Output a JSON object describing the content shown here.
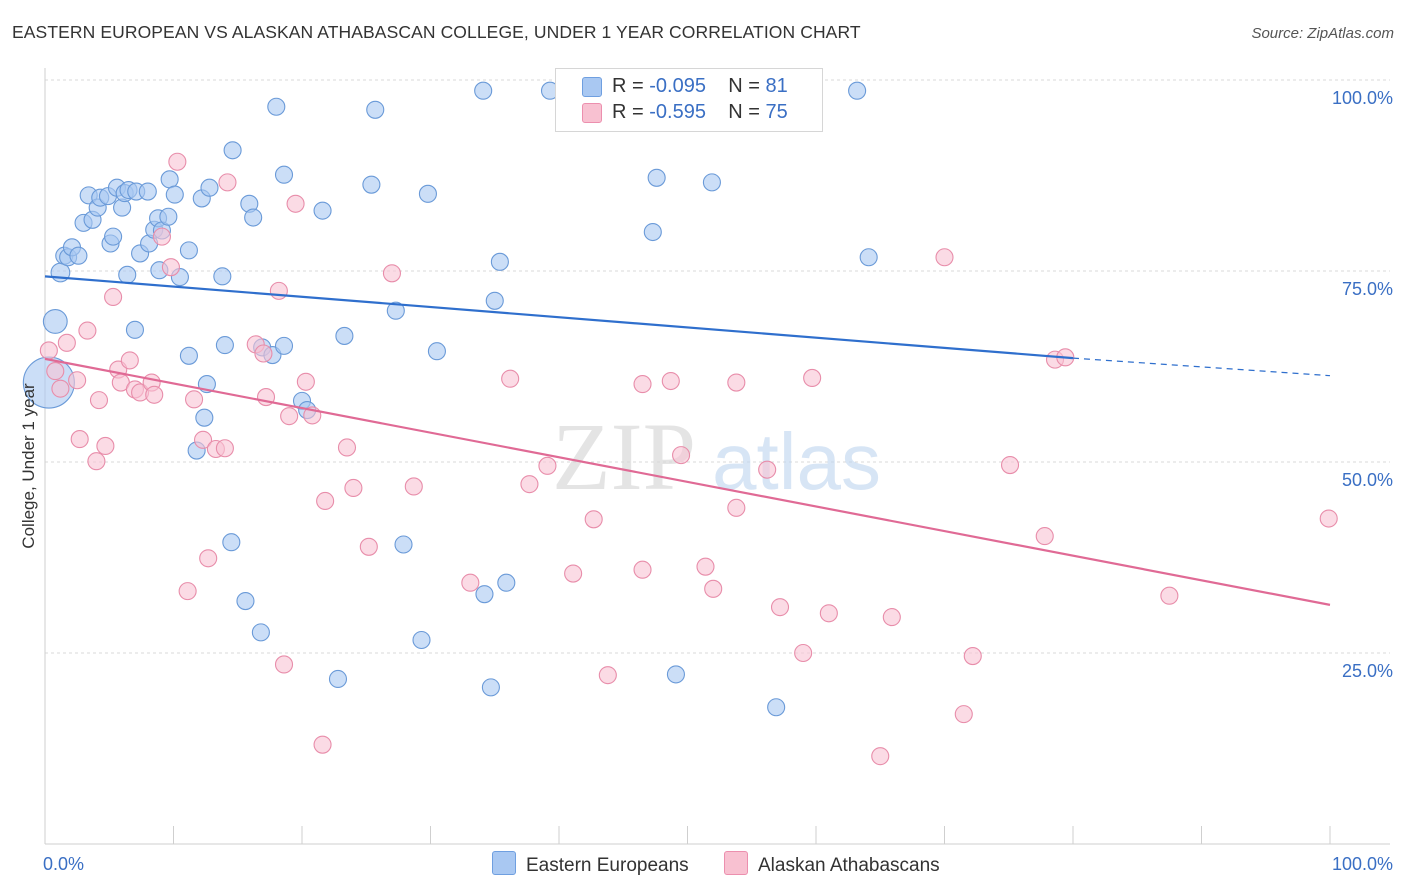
{
  "title": "EASTERN EUROPEAN VS ALASKAN ATHABASCAN COLLEGE, UNDER 1 YEAR CORRELATION CHART",
  "source": "Source: ZipAtlas.com",
  "watermark": {
    "zip": "ZIP",
    "atlas": "atlas"
  },
  "legend_stats": [
    {
      "r_label": "R =",
      "r_value": "-0.095",
      "n_label": "N =",
      "n_value": "81",
      "color": "#a9c8f2",
      "border": "#6f9fe0"
    },
    {
      "r_label": "R =",
      "r_value": "-0.595",
      "n_label": "N =",
      "n_value": "75",
      "color": "#f8c1d1",
      "border": "#ec8fae"
    }
  ],
  "bottom_legend": [
    "Eastern Europeans",
    "Alaskan Athabascans"
  ],
  "colors": {
    "blue_fill": "#a9c8f2",
    "blue_stroke": "#6a9ad8",
    "blue_line": "#2f6fcd",
    "pink_fill": "#f8c3d3",
    "pink_stroke": "#e88daa",
    "pink_line": "#e06a95",
    "tick_label": "#3a6fc4",
    "grid": "#d9d9d9"
  },
  "chart_data": {
    "type": "scatter",
    "title": "EASTERN EUROPEAN VS ALASKAN ATHABASCAN COLLEGE, UNDER 1 YEAR CORRELATION CHART",
    "xlabel": "",
    "ylabel": "College, Under 1 year",
    "xlim": [
      0,
      100
    ],
    "ylim": [
      0,
      100
    ],
    "x_tick_labels": [
      "0.0%",
      "100.0%"
    ],
    "y_tick_labels": [
      "100.0%",
      "75.0%",
      "50.0%",
      "25.0%"
    ],
    "y_ticks": [
      100,
      75,
      50,
      25
    ],
    "grid": true,
    "legend_position": "top-center",
    "series": [
      {
        "name": "Eastern Europeans",
        "trend": {
          "x": [
            0,
            80,
            100
          ],
          "y": [
            74.3,
            63.6,
            61.3
          ],
          "dashed_from": 80
        },
        "points": [
          [
            0.3,
            60.4,
            30
          ],
          [
            0.8,
            68.4,
            14
          ],
          [
            1.2,
            74.8,
            11
          ],
          [
            1.5,
            77.0,
            10
          ],
          [
            1.8,
            76.8,
            10
          ],
          [
            2.1,
            78.1,
            10
          ],
          [
            2.6,
            77.0,
            10
          ],
          [
            3.0,
            81.3,
            10
          ],
          [
            3.4,
            84.9,
            10
          ],
          [
            3.7,
            81.7,
            10
          ],
          [
            4.1,
            83.3,
            10
          ],
          [
            4.3,
            84.6,
            10
          ],
          [
            4.9,
            84.8,
            10
          ],
          [
            5.1,
            78.6,
            10
          ],
          [
            5.3,
            79.5,
            10
          ],
          [
            5.6,
            85.9,
            10
          ],
          [
            6.0,
            83.3,
            10
          ],
          [
            6.2,
            85.2,
            10
          ],
          [
            6.5,
            85.6,
            10
          ],
          [
            6.4,
            74.5,
            10
          ],
          [
            7.0,
            67.3,
            10
          ],
          [
            7.1,
            85.4,
            10
          ],
          [
            7.4,
            77.3,
            10
          ],
          [
            8.0,
            85.4,
            10
          ],
          [
            8.1,
            78.6,
            10
          ],
          [
            8.5,
            80.4,
            10
          ],
          [
            8.8,
            81.9,
            10
          ],
          [
            8.9,
            75.1,
            10
          ],
          [
            9.1,
            80.3,
            10
          ],
          [
            9.6,
            82.1,
            10
          ],
          [
            9.7,
            87.0,
            10
          ],
          [
            10.1,
            85.0,
            10
          ],
          [
            10.5,
            74.2,
            10
          ],
          [
            11.2,
            63.9,
            10
          ],
          [
            11.2,
            77.7,
            10
          ],
          [
            11.8,
            51.5,
            10
          ],
          [
            12.2,
            84.5,
            10
          ],
          [
            12.4,
            55.8,
            10
          ],
          [
            12.6,
            60.2,
            10
          ],
          [
            12.8,
            85.9,
            10
          ],
          [
            13.8,
            74.3,
            10
          ],
          [
            14.0,
            65.3,
            10
          ],
          [
            14.6,
            90.8,
            10
          ],
          [
            14.5,
            39.5,
            10
          ],
          [
            15.9,
            83.8,
            10
          ],
          [
            15.6,
            31.8,
            10
          ],
          [
            16.2,
            82.0,
            10
          ],
          [
            16.8,
            27.7,
            10
          ],
          [
            16.9,
            65.0,
            10
          ],
          [
            17.7,
            64.0,
            10
          ],
          [
            18.0,
            96.5,
            10
          ],
          [
            18.6,
            65.2,
            10
          ],
          [
            18.6,
            87.6,
            10
          ],
          [
            20.0,
            58.0,
            10
          ],
          [
            20.4,
            56.8,
            10
          ],
          [
            21.6,
            82.9,
            10
          ],
          [
            22.8,
            21.6,
            10
          ],
          [
            23.3,
            66.5,
            10
          ],
          [
            25.4,
            86.3,
            10
          ],
          [
            25.7,
            96.1,
            10
          ],
          [
            27.3,
            69.8,
            10
          ],
          [
            27.9,
            39.2,
            10
          ],
          [
            29.3,
            26.7,
            10
          ],
          [
            29.8,
            85.1,
            10
          ],
          [
            30.5,
            64.5,
            10
          ],
          [
            34.1,
            98.6,
            10
          ],
          [
            34.2,
            32.7,
            10
          ],
          [
            34.7,
            20.5,
            10
          ],
          [
            35.0,
            71.1,
            10
          ],
          [
            35.4,
            76.2,
            10
          ],
          [
            35.9,
            34.2,
            10
          ],
          [
            39.3,
            98.6,
            10
          ],
          [
            44.8,
            98.9,
            10
          ],
          [
            45.3,
            98.1,
            10
          ],
          [
            47.6,
            87.2,
            10
          ],
          [
            47.3,
            80.1,
            10
          ],
          [
            49.1,
            22.2,
            10
          ],
          [
            51.9,
            86.6,
            10
          ],
          [
            56.9,
            17.9,
            10
          ],
          [
            63.2,
            98.6,
            10
          ],
          [
            64.1,
            76.8,
            10
          ]
        ]
      },
      {
        "name": "Alaskan Athabascans",
        "trend": {
          "x": [
            0,
            100
          ],
          "y": [
            63.5,
            31.3
          ],
          "dashed_from": null
        },
        "points": [
          [
            0.3,
            64.6,
            10
          ],
          [
            0.8,
            61.9,
            10
          ],
          [
            1.2,
            59.6,
            10
          ],
          [
            1.7,
            65.6,
            10
          ],
          [
            2.5,
            60.7,
            10
          ],
          [
            2.7,
            53.0,
            10
          ],
          [
            3.3,
            67.2,
            10
          ],
          [
            4.0,
            50.1,
            10
          ],
          [
            4.2,
            58.1,
            10
          ],
          [
            4.7,
            52.1,
            10
          ],
          [
            5.3,
            71.6,
            10
          ],
          [
            5.7,
            62.1,
            10
          ],
          [
            5.9,
            60.4,
            10
          ],
          [
            6.6,
            63.3,
            10
          ],
          [
            7.0,
            59.5,
            10
          ],
          [
            7.4,
            59.1,
            10
          ],
          [
            8.3,
            60.4,
            10
          ],
          [
            8.5,
            58.8,
            10
          ],
          [
            9.1,
            79.5,
            10
          ],
          [
            9.8,
            75.5,
            10
          ],
          [
            10.3,
            89.3,
            10
          ],
          [
            11.1,
            33.1,
            10
          ],
          [
            11.6,
            58.2,
            10
          ],
          [
            12.3,
            52.9,
            10
          ],
          [
            12.7,
            37.4,
            10
          ],
          [
            13.3,
            51.7,
            10
          ],
          [
            14.0,
            51.8,
            10
          ],
          [
            14.2,
            86.6,
            10
          ],
          [
            16.4,
            65.4,
            10
          ],
          [
            17.0,
            64.2,
            10
          ],
          [
            17.2,
            58.5,
            10
          ],
          [
            18.2,
            72.4,
            10
          ],
          [
            18.6,
            23.5,
            10
          ],
          [
            19.0,
            56.0,
            10
          ],
          [
            19.5,
            83.8,
            10
          ],
          [
            20.3,
            60.5,
            10
          ],
          [
            20.8,
            56.1,
            10
          ],
          [
            21.6,
            13.0,
            10
          ],
          [
            21.8,
            44.9,
            10
          ],
          [
            23.5,
            51.9,
            10
          ],
          [
            24.0,
            46.6,
            10
          ],
          [
            25.2,
            38.9,
            10
          ],
          [
            27.0,
            74.7,
            10
          ],
          [
            28.7,
            46.8,
            10
          ],
          [
            33.1,
            34.2,
            10
          ],
          [
            36.2,
            60.9,
            10
          ],
          [
            37.7,
            47.1,
            10
          ],
          [
            39.1,
            49.5,
            10
          ],
          [
            41.1,
            35.4,
            10
          ],
          [
            42.7,
            42.5,
            10
          ],
          [
            43.8,
            22.1,
            10
          ],
          [
            46.5,
            35.9,
            10
          ],
          [
            46.5,
            60.2,
            10
          ],
          [
            48.7,
            60.6,
            10
          ],
          [
            49.5,
            50.9,
            10
          ],
          [
            51.4,
            36.3,
            10
          ],
          [
            52.0,
            33.4,
            10
          ],
          [
            53.8,
            44.0,
            10
          ],
          [
            53.8,
            60.4,
            10
          ],
          [
            56.2,
            49.0,
            10
          ],
          [
            57.2,
            31.0,
            10
          ],
          [
            59.0,
            25.0,
            10
          ],
          [
            59.7,
            61.0,
            10
          ],
          [
            61.0,
            30.2,
            10
          ],
          [
            65.9,
            29.7,
            10
          ],
          [
            65.0,
            11.5,
            10
          ],
          [
            70.0,
            76.8,
            10
          ],
          [
            71.5,
            17.0,
            10
          ],
          [
            72.2,
            24.6,
            10
          ],
          [
            75.1,
            49.6,
            10
          ],
          [
            77.8,
            40.3,
            10
          ],
          [
            78.6,
            63.4,
            10
          ],
          [
            79.4,
            63.7,
            10
          ],
          [
            87.5,
            32.5,
            10
          ],
          [
            99.9,
            42.6,
            10
          ]
        ]
      }
    ]
  }
}
